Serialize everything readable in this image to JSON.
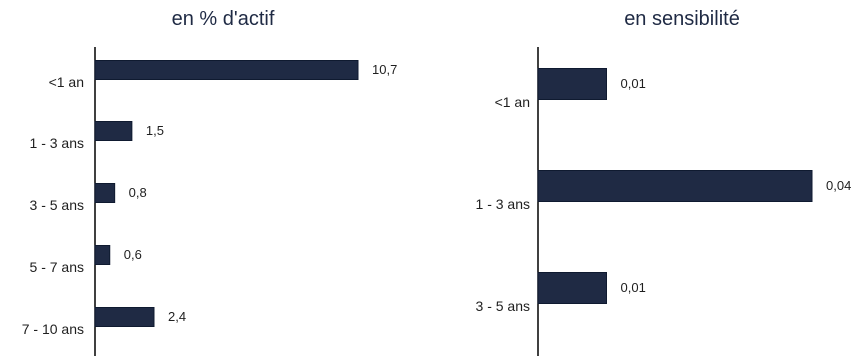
{
  "colors": {
    "bar": "#1f2a44"
  },
  "chart_data": [
    {
      "type": "bar",
      "orientation": "horizontal",
      "title": "en % d'actif",
      "categories": [
        "<1 an",
        "1 - 3 ans",
        "3 - 5 ans",
        "5 - 7 ans",
        "7 - 10 ans"
      ],
      "values": [
        10.7,
        1.5,
        0.8,
        0.6,
        2.4
      ],
      "value_labels": [
        "10,7",
        "1,5",
        "0,8",
        "0,6",
        "2,4"
      ],
      "xlim": [
        0,
        10.7
      ],
      "grid": false,
      "legend": "none"
    },
    {
      "type": "bar",
      "orientation": "horizontal",
      "title": "en sensibilité",
      "categories": [
        "<1 an",
        "1 - 3 ans",
        "3 - 5 ans"
      ],
      "values": [
        0.01,
        0.04,
        0.01
      ],
      "value_labels": [
        "0,01",
        "0,04",
        "0,01"
      ],
      "xlim": [
        0,
        0.04
      ],
      "grid": false,
      "legend": "none"
    }
  ]
}
